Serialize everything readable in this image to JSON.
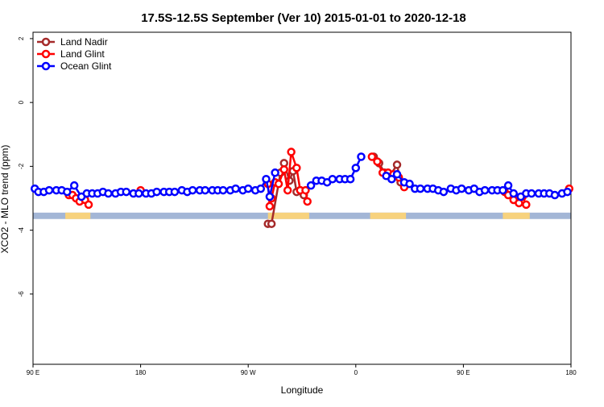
{
  "chart_data": {
    "type": "line",
    "title": "17.5S-12.5S September (Ver 10)   2015-01-01 to 2020-12-18",
    "xlabel": "Longitude",
    "ylabel": "XCO2 - MLO trend (ppm)",
    "xlim": [
      -90,
      210
    ],
    "ylim": [
      -8.2,
      2.2
    ],
    "x_ticks": [
      {
        "value": -90,
        "label": "90 E"
      },
      {
        "value": -30,
        "label": "180"
      },
      {
        "value": 30,
        "label": "90 W"
      },
      {
        "value": 90,
        "label": "0"
      },
      {
        "value": 150,
        "label": "90 E"
      },
      {
        "value": 210,
        "label": "180"
      }
    ],
    "y_ticks": [
      {
        "value": 2,
        "label": "2"
      },
      {
        "value": 0,
        "label": "0"
      },
      {
        "value": -2,
        "label": "-2"
      },
      {
        "value": -4,
        "label": "-4"
      },
      {
        "value": -6,
        "label": "-6"
      }
    ],
    "legend_position": "top-left",
    "series": [
      {
        "name": "Land Nadir",
        "color": "#a52a2a",
        "points": [
          [
            41,
            -3.8
          ],
          [
            43,
            -3.8
          ],
          [
            48,
            -2.2
          ],
          [
            50,
            -1.9
          ],
          [
            53,
            -2.45
          ],
          [
            55,
            -2.15
          ],
          [
            57,
            -2.8
          ],
          [
            59,
            -2.75
          ],
          [
            61,
            -2.9
          ],
          [
            100,
            -1.7
          ],
          [
            103,
            -1.9
          ],
          [
            106,
            -2.2
          ],
          [
            109,
            -2.3
          ],
          [
            113,
            -1.95
          ],
          [
            115,
            -2.5
          ]
        ]
      },
      {
        "name": "Land Glint",
        "color": "#ff0000",
        "points": [
          [
            -70,
            -2.9
          ],
          [
            -68,
            -2.9
          ],
          [
            -66,
            -3.0
          ],
          [
            -64,
            -3.1
          ],
          [
            -61,
            -3.05
          ],
          [
            -59,
            -3.2
          ],
          [
            -30,
            -2.75
          ],
          [
            41,
            -2.55
          ],
          [
            42,
            -3.25
          ],
          [
            43,
            -3.0
          ],
          [
            45,
            -2.5
          ],
          [
            47,
            -2.55
          ],
          [
            50,
            -2.1
          ],
          [
            52,
            -2.75
          ],
          [
            54,
            -1.55
          ],
          [
            57,
            -2.05
          ],
          [
            59,
            -2.75
          ],
          [
            62,
            -2.75
          ],
          [
            63,
            -3.1
          ],
          [
            99,
            -1.7
          ],
          [
            102,
            -1.85
          ],
          [
            105,
            -2.2
          ],
          [
            108,
            -2.2
          ],
          [
            111,
            -2.25
          ],
          [
            114,
            -2.35
          ],
          [
            117,
            -2.65
          ],
          [
            173,
            -2.8
          ],
          [
            175,
            -2.9
          ],
          [
            178,
            -3.05
          ],
          [
            181,
            -3.15
          ],
          [
            183,
            -2.95
          ],
          [
            185,
            -3.2
          ],
          [
            209,
            -2.7
          ]
        ]
      },
      {
        "name": "Ocean Glint",
        "color": "#0000ff",
        "points": [
          [
            -89,
            -2.7
          ],
          [
            -87,
            -2.8
          ],
          [
            -84,
            -2.8
          ],
          [
            -81,
            -2.75
          ],
          [
            -77,
            -2.75
          ],
          [
            -74,
            -2.75
          ],
          [
            -71,
            -2.8
          ],
          [
            -67,
            -2.6
          ],
          [
            -63,
            -2.95
          ],
          [
            -60,
            -2.85
          ],
          [
            -57,
            -2.85
          ],
          [
            -54,
            -2.85
          ],
          [
            -51,
            -2.8
          ],
          [
            -48,
            -2.85
          ],
          [
            -44,
            -2.85
          ],
          [
            -41,
            -2.8
          ],
          [
            -38,
            -2.8
          ],
          [
            -34,
            -2.85
          ],
          [
            -31,
            -2.85
          ],
          [
            -27,
            -2.85
          ],
          [
            -24,
            -2.85
          ],
          [
            -21,
            -2.8
          ],
          [
            -17,
            -2.8
          ],
          [
            -14,
            -2.8
          ],
          [
            -11,
            -2.8
          ],
          [
            -7,
            -2.75
          ],
          [
            -4,
            -2.8
          ],
          [
            -1,
            -2.75
          ],
          [
            3,
            -2.75
          ],
          [
            6,
            -2.75
          ],
          [
            10,
            -2.75
          ],
          [
            13,
            -2.75
          ],
          [
            16,
            -2.75
          ],
          [
            20,
            -2.75
          ],
          [
            23,
            -2.7
          ],
          [
            27,
            -2.75
          ],
          [
            30,
            -2.7
          ],
          [
            34,
            -2.75
          ],
          [
            37,
            -2.7
          ],
          [
            40,
            -2.4
          ],
          [
            42,
            -2.95
          ],
          [
            45,
            -2.2
          ],
          [
            65,
            -2.6
          ],
          [
            68,
            -2.45
          ],
          [
            71,
            -2.45
          ],
          [
            74,
            -2.5
          ],
          [
            77,
            -2.4
          ],
          [
            81,
            -2.4
          ],
          [
            84,
            -2.4
          ],
          [
            87,
            -2.4
          ],
          [
            90,
            -2.05
          ],
          [
            93,
            -1.7
          ],
          [
            107,
            -2.3
          ],
          [
            110,
            -2.4
          ],
          [
            113,
            -2.25
          ],
          [
            117,
            -2.5
          ],
          [
            120,
            -2.55
          ],
          [
            123,
            -2.7
          ],
          [
            126,
            -2.7
          ],
          [
            130,
            -2.7
          ],
          [
            133,
            -2.7
          ],
          [
            136,
            -2.75
          ],
          [
            139,
            -2.8
          ],
          [
            143,
            -2.7
          ],
          [
            146,
            -2.75
          ],
          [
            149,
            -2.7
          ],
          [
            153,
            -2.75
          ],
          [
            156,
            -2.7
          ],
          [
            159,
            -2.8
          ],
          [
            162,
            -2.75
          ],
          [
            166,
            -2.75
          ],
          [
            169,
            -2.75
          ],
          [
            172,
            -2.75
          ],
          [
            175,
            -2.6
          ],
          [
            178,
            -2.85
          ],
          [
            182,
            -2.95
          ],
          [
            185,
            -2.85
          ],
          [
            188,
            -2.85
          ],
          [
            192,
            -2.85
          ],
          [
            195,
            -2.85
          ],
          [
            198,
            -2.85
          ],
          [
            201,
            -2.9
          ],
          [
            205,
            -2.85
          ],
          [
            208,
            -2.8
          ]
        ]
      }
    ],
    "surface_strip": {
      "y_range": [
        -3.65,
        -3.45
      ],
      "base_color": "#a3b6d6",
      "land_color": "#f7d27d",
      "land_segments": [
        [
          -72,
          -58
        ],
        [
          41,
          64
        ],
        [
          98,
          118
        ],
        [
          172,
          187
        ]
      ]
    }
  }
}
